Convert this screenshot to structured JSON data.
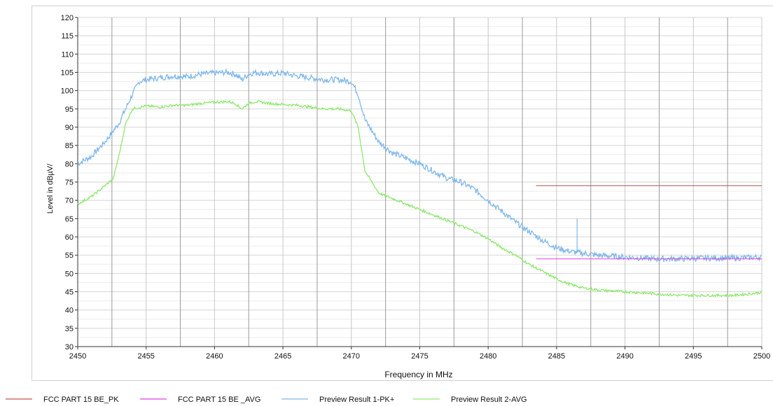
{
  "chart_data": {
    "type": "line",
    "xlabel": "Frequency in MHz",
    "ylabel": "Level in dBµV/",
    "xlim": [
      2450,
      2500
    ],
    "ylim": [
      30,
      120
    ],
    "x_ticks": [
      2450,
      2455,
      2460,
      2465,
      2470,
      2475,
      2480,
      2485,
      2490,
      2495,
      2500
    ],
    "y_ticks": [
      30,
      35,
      40,
      45,
      50,
      55,
      60,
      65,
      70,
      75,
      80,
      85,
      90,
      95,
      100,
      105,
      110,
      115,
      120
    ],
    "grid": true,
    "legend_position": "bottom",
    "limits": [
      {
        "name": "FCC PART 15 BE_PK",
        "color": "#c0504d",
        "x": [
          2483.5,
          2500
        ],
        "y": [
          74,
          74
        ]
      },
      {
        "name": "FCC PART 15 BE _AVG",
        "color": "#e040e0",
        "x": [
          2483.5,
          2500
        ],
        "y": [
          54,
          54
        ]
      }
    ],
    "series": [
      {
        "name": "Preview Result 1-PK+",
        "color": "#7fb8ec",
        "points": [
          [
            2450,
            80
          ],
          [
            2451,
            82
          ],
          [
            2452,
            86
          ],
          [
            2453,
            91
          ],
          [
            2454,
            99
          ],
          [
            2454.5,
            102.5
          ],
          [
            2455,
            103
          ],
          [
            2456,
            103.5
          ],
          [
            2457,
            104
          ],
          [
            2458,
            103.8
          ],
          [
            2459,
            104.5
          ],
          [
            2460,
            104.8
          ],
          [
            2461,
            105
          ],
          [
            2461.5,
            104.5
          ],
          [
            2462,
            103
          ],
          [
            2462.5,
            104.5
          ],
          [
            2463,
            105
          ],
          [
            2464,
            104.5
          ],
          [
            2465,
            104.8
          ],
          [
            2466,
            104
          ],
          [
            2467,
            103.5
          ],
          [
            2468,
            103
          ],
          [
            2469,
            103
          ],
          [
            2470,
            102.5
          ],
          [
            2470.5,
            99
          ],
          [
            2471,
            92
          ],
          [
            2472,
            86
          ],
          [
            2473,
            83
          ],
          [
            2474,
            81.5
          ],
          [
            2475,
            80
          ],
          [
            2476,
            78
          ],
          [
            2477,
            76
          ],
          [
            2478,
            75
          ],
          [
            2479,
            73
          ],
          [
            2480,
            70
          ],
          [
            2481,
            67
          ],
          [
            2482,
            64
          ],
          [
            2483,
            61.5
          ],
          [
            2484,
            59
          ],
          [
            2485,
            57
          ],
          [
            2486,
            56
          ],
          [
            2487,
            55.5
          ],
          [
            2488,
            55
          ],
          [
            2490,
            54.5
          ],
          [
            2492,
            54
          ],
          [
            2494,
            54
          ],
          [
            2496,
            54.2
          ],
          [
            2498,
            54.2
          ],
          [
            2500,
            54.5
          ]
        ],
        "spikes": [
          [
            2486.5,
            65
          ]
        ]
      },
      {
        "name": "Preview Result 2-AVG",
        "color": "#8fe86f",
        "points": [
          [
            2450,
            69
          ],
          [
            2451,
            71
          ],
          [
            2452,
            74
          ],
          [
            2452.6,
            76
          ],
          [
            2453,
            82
          ],
          [
            2453.5,
            91
          ],
          [
            2454,
            95
          ],
          [
            2455,
            95.8
          ],
          [
            2456,
            95.5
          ],
          [
            2457,
            96
          ],
          [
            2458,
            96
          ],
          [
            2459,
            96.5
          ],
          [
            2460,
            96.8
          ],
          [
            2461,
            97
          ],
          [
            2461.5,
            96.5
          ],
          [
            2462,
            95
          ],
          [
            2462.5,
            96.5
          ],
          [
            2463,
            97
          ],
          [
            2464,
            96.5
          ],
          [
            2465,
            96.2
          ],
          [
            2466,
            96
          ],
          [
            2467,
            95.5
          ],
          [
            2468,
            95
          ],
          [
            2469,
            95
          ],
          [
            2470,
            94.5
          ],
          [
            2470.5,
            90
          ],
          [
            2471,
            78
          ],
          [
            2472,
            72
          ],
          [
            2473,
            70.5
          ],
          [
            2474,
            69
          ],
          [
            2475,
            67.5
          ],
          [
            2476,
            66
          ],
          [
            2477,
            64.5
          ],
          [
            2478,
            63
          ],
          [
            2479,
            61.5
          ],
          [
            2480,
            59.5
          ],
          [
            2481,
            57
          ],
          [
            2482,
            55
          ],
          [
            2483,
            52.5
          ],
          [
            2484,
            50.5
          ],
          [
            2485,
            48.5
          ],
          [
            2486,
            47
          ],
          [
            2487,
            46
          ],
          [
            2488,
            45.5
          ],
          [
            2490,
            45
          ],
          [
            2492,
            44.5
          ],
          [
            2494,
            44
          ],
          [
            2496,
            44
          ],
          [
            2498,
            44
          ],
          [
            2500,
            44.8
          ]
        ]
      }
    ]
  }
}
